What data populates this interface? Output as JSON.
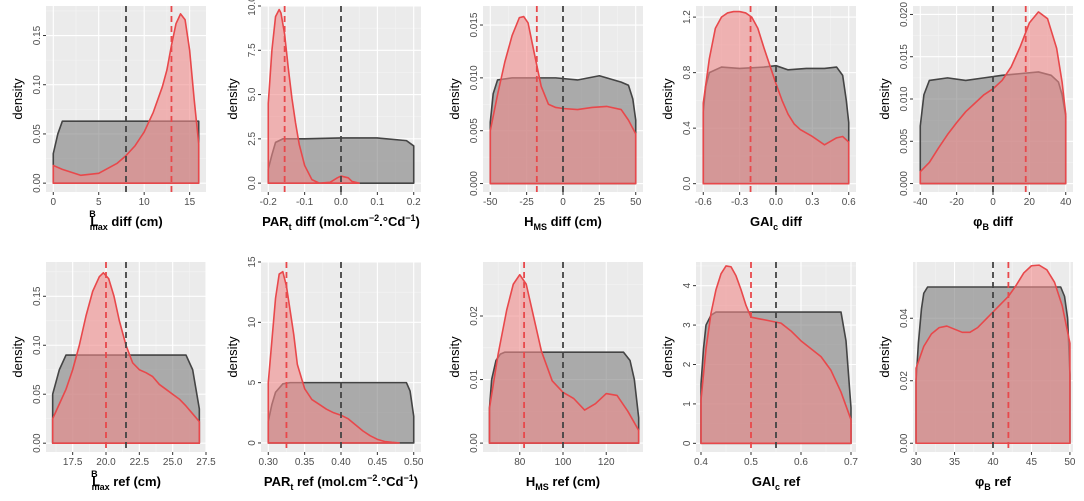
{
  "colors": {
    "panel_bg": "#ebebeb",
    "grid_major": "#ffffff",
    "grid_minor": "#f4f4f4",
    "grey_fill": "#7f7f7f",
    "grey_line": "#444444",
    "red_fill": "#f08a8a",
    "red_line": "#e8484b",
    "text": "#4d4d4d",
    "title": "#000000"
  },
  "chart_data": [
    {
      "type": "area",
      "id": "lmax-diff",
      "ylabel": "density",
      "xlabel_main": "L",
      "xlabel_sup": "B",
      "xlabel_sub": "max",
      "xlabel_rest": " diff (cm)",
      "xlim": [
        -0.8,
        16.8
      ],
      "ylim": [
        -0.009,
        0.18
      ],
      "xticks": [
        0,
        5,
        10,
        15
      ],
      "xtick_labels": [
        "0",
        "5",
        "10",
        "15"
      ],
      "yticks": [
        0,
        0.05,
        0.1,
        0.15
      ],
      "ytick_labels": [
        "0.00",
        "0.05",
        "0.10",
        "0.15"
      ],
      "grey": {
        "x": [
          0,
          0.5,
          1,
          16
        ],
        "y": [
          0.03,
          0.05,
          0.063,
          0.063
        ],
        "vline": 8
      },
      "red": {
        "x": [
          0,
          1,
          3,
          5,
          7,
          8,
          9,
          10,
          11,
          12,
          12.5,
          13,
          13.5,
          14,
          14.5,
          15,
          15.5,
          16
        ],
        "y": [
          0.018,
          0.014,
          0.008,
          0.01,
          0.02,
          0.028,
          0.038,
          0.052,
          0.072,
          0.098,
          0.115,
          0.14,
          0.162,
          0.172,
          0.166,
          0.135,
          0.085,
          0.04
        ],
        "vline": 13
      }
    },
    {
      "type": "area",
      "id": "part-diff",
      "ylabel": "density",
      "xlabel_main": "PAR",
      "xlabel_sub": "t",
      "xlabel_rest": " diff (mol.cm",
      "xlabel_sup2": "−2",
      "xlabel_rest2": ".°Cd",
      "xlabel_sup3": "−1",
      "xlabel_rest3": ")",
      "xlim": [
        -0.22,
        0.22
      ],
      "ylim": [
        -0.5,
        10
      ],
      "xticks": [
        -0.2,
        -0.1,
        0,
        0.1,
        0.2
      ],
      "xtick_labels": [
        "-0.2",
        "-0.1",
        "0.0",
        "0.1",
        "0.2"
      ],
      "yticks": [
        0,
        2.5,
        5,
        7.5,
        10
      ],
      "ytick_labels": [
        "0.0",
        "2.5",
        "5.0",
        "7.5",
        "10.0"
      ],
      "grey": {
        "x": [
          -0.2,
          -0.19,
          -0.18,
          -0.16,
          -0.1,
          0,
          0.1,
          0.18,
          0.2
        ],
        "y": [
          0.8,
          1.6,
          2.3,
          2.5,
          2.5,
          2.55,
          2.55,
          2.4,
          2.1
        ],
        "vline": 0
      },
      "red": {
        "x": [
          -0.2,
          -0.19,
          -0.18,
          -0.17,
          -0.165,
          -0.155,
          -0.145,
          -0.135,
          -0.125,
          -0.115,
          -0.1,
          -0.08,
          -0.06,
          -0.03,
          -0.01,
          0,
          0.01,
          0.02,
          0.03,
          0.05
        ],
        "y": [
          4.5,
          7.5,
          9.4,
          9.8,
          9.6,
          8.4,
          6.5,
          4.8,
          3.4,
          2.2,
          1.0,
          0.2,
          0.0,
          0.05,
          0.3,
          0.4,
          0.35,
          0.3,
          0.1,
          0.0
        ],
        "vline": -0.155
      }
    },
    {
      "type": "area",
      "id": "hms-diff",
      "ylabel": "density",
      "xlabel_main": "H",
      "xlabel_sub": "MS",
      "xlabel_rest": " diff (cm)",
      "xlim": [
        -55,
        55
      ],
      "ylim": [
        -0.0008,
        0.0168
      ],
      "xticks": [
        -50,
        -25,
        0,
        25,
        50
      ],
      "xtick_labels": [
        "-50",
        "-25",
        "0",
        "25",
        "50"
      ],
      "yticks": [
        0,
        0.005,
        0.01,
        0.015
      ],
      "ytick_labels": [
        "0.000",
        "0.005",
        "0.010",
        "0.015"
      ],
      "grey": {
        "x": [
          -50,
          -48,
          -45,
          -35,
          -20,
          -5,
          10,
          25,
          40,
          45,
          48,
          50
        ],
        "y": [
          0.0058,
          0.0085,
          0.0098,
          0.01,
          0.01,
          0.01,
          0.0098,
          0.0102,
          0.0096,
          0.0093,
          0.008,
          0.006
        ],
        "vline": 0
      },
      "red": {
        "x": [
          -50,
          -45,
          -40,
          -35,
          -30,
          -27,
          -24,
          -20,
          -15,
          -10,
          -5,
          0,
          10,
          20,
          30,
          40,
          45,
          50
        ],
        "y": [
          0.005,
          0.0084,
          0.0115,
          0.014,
          0.0157,
          0.0158,
          0.0152,
          0.0125,
          0.0092,
          0.0075,
          0.0072,
          0.0071,
          0.007,
          0.0072,
          0.0073,
          0.007,
          0.006,
          0.0047
        ],
        "vline": -18
      }
    },
    {
      "type": "area",
      "id": "gaic-diff",
      "ylabel": "density",
      "xlabel_main": "GAI",
      "xlabel_sub": "c",
      "xlabel_rest": " diff",
      "xlim": [
        -0.66,
        0.66
      ],
      "ylim": [
        -0.06,
        1.28
      ],
      "xticks": [
        -0.6,
        -0.3,
        0,
        0.3,
        0.6
      ],
      "xtick_labels": [
        "-0.6",
        "-0.3",
        "0.0",
        "0.3",
        "0.6"
      ],
      "yticks": [
        0,
        0.4,
        0.8,
        1.2
      ],
      "ytick_labels": [
        "0.0",
        "0.4",
        "0.8",
        "1.2"
      ],
      "grey": {
        "x": [
          -0.6,
          -0.58,
          -0.55,
          -0.45,
          -0.3,
          -0.1,
          0,
          0.1,
          0.25,
          0.4,
          0.5,
          0.55,
          0.58,
          0.6
        ],
        "y": [
          0.52,
          0.7,
          0.8,
          0.84,
          0.83,
          0.84,
          0.85,
          0.82,
          0.83,
          0.83,
          0.84,
          0.78,
          0.6,
          0.44
        ],
        "vline": 0
      },
      "red": {
        "x": [
          -0.6,
          -0.55,
          -0.5,
          -0.45,
          -0.4,
          -0.35,
          -0.3,
          -0.25,
          -0.2,
          -0.15,
          -0.1,
          -0.05,
          0,
          0.05,
          0.1,
          0.15,
          0.2,
          0.3,
          0.4,
          0.5,
          0.55,
          0.6
        ],
        "y": [
          0.58,
          0.9,
          1.12,
          1.2,
          1.23,
          1.24,
          1.24,
          1.23,
          1.2,
          1.12,
          0.98,
          0.85,
          0.72,
          0.6,
          0.5,
          0.43,
          0.39,
          0.34,
          0.28,
          0.33,
          0.34,
          0.3
        ],
        "vline": -0.21
      }
    },
    {
      "type": "area",
      "id": "phib-diff",
      "ylabel": "density",
      "xlabel_main": "φ",
      "xlabel_sub": "B",
      "xlabel_rest": " diff",
      "xlim": [
        -44,
        44
      ],
      "ylim": [
        -0.001,
        0.021
      ],
      "xticks": [
        -40,
        -20,
        0,
        20,
        40
      ],
      "xtick_labels": [
        "-40",
        "-20",
        "0",
        "20",
        "40"
      ],
      "yticks": [
        0,
        0.005,
        0.01,
        0.015,
        0.02
      ],
      "ytick_labels": [
        "0.000",
        "0.005",
        "0.010",
        "0.015",
        "0.020"
      ],
      "grey": {
        "x": [
          -40,
          -38,
          -35,
          -25,
          -15,
          -5,
          5,
          15,
          25,
          32,
          36,
          38,
          40
        ],
        "y": [
          0.0068,
          0.0105,
          0.0122,
          0.0125,
          0.0122,
          0.0125,
          0.0128,
          0.013,
          0.0132,
          0.0128,
          0.012,
          0.0105,
          0.008
        ],
        "vline": 0
      },
      "red": {
        "x": [
          -40,
          -35,
          -30,
          -25,
          -20,
          -15,
          -10,
          -5,
          0,
          5,
          10,
          15,
          20,
          25,
          30,
          35,
          38,
          40
        ],
        "y": [
          0.0014,
          0.0025,
          0.0042,
          0.0058,
          0.0072,
          0.0085,
          0.0095,
          0.0105,
          0.0112,
          0.0122,
          0.0138,
          0.0162,
          0.019,
          0.0203,
          0.0195,
          0.016,
          0.012,
          0.0082
        ],
        "vline": 18
      }
    },
    {
      "type": "area",
      "id": "lmax-ref",
      "ylabel": "density",
      "xlabel_main": "L",
      "xlabel_sup": "B",
      "xlabel_sub": "max",
      "xlabel_rest": " ref (cm)",
      "xlim": [
        15.5,
        27.5
      ],
      "ylim": [
        -0.009,
        0.185
      ],
      "xticks": [
        17.5,
        20,
        22.5,
        25,
        27.5
      ],
      "xtick_labels": [
        "17.5",
        "20.0",
        "22.5",
        "25.0",
        "27.5"
      ],
      "yticks": [
        0,
        0.05,
        0.1,
        0.15
      ],
      "ytick_labels": [
        "0.00",
        "0.05",
        "0.10",
        "0.15"
      ],
      "grey": {
        "x": [
          16,
          16.5,
          17,
          26,
          26.5,
          27
        ],
        "y": [
          0.05,
          0.075,
          0.09,
          0.09,
          0.075,
          0.035
        ],
        "vline": 21.5
      },
      "red": {
        "x": [
          16,
          16.5,
          17,
          17.5,
          18,
          18.5,
          19,
          19.5,
          19.8,
          20.2,
          20.6,
          21,
          21.5,
          22,
          22.5,
          23,
          23.5,
          24,
          24.5,
          25,
          25.5,
          26,
          26.5,
          27
        ],
        "y": [
          0.025,
          0.04,
          0.055,
          0.075,
          0.1,
          0.13,
          0.155,
          0.17,
          0.174,
          0.168,
          0.15,
          0.125,
          0.1,
          0.082,
          0.075,
          0.072,
          0.068,
          0.06,
          0.055,
          0.05,
          0.045,
          0.038,
          0.03,
          0.022
        ],
        "vline": 20
      }
    },
    {
      "type": "area",
      "id": "part-ref",
      "ylabel": "density",
      "xlabel_main": "PAR",
      "xlabel_sub": "t",
      "xlabel_rest": " ref (mol.cm",
      "xlabel_sup2": "−2",
      "xlabel_rest2": ".°Cd",
      "xlabel_sup3": "−1",
      "xlabel_rest3": ")",
      "xlim": [
        0.29,
        0.51
      ],
      "ylim": [
        -0.75,
        15
      ],
      "xticks": [
        0.3,
        0.35,
        0.4,
        0.45,
        0.5
      ],
      "xtick_labels": [
        "0.30",
        "0.35",
        "0.40",
        "0.45",
        "0.50"
      ],
      "yticks": [
        0,
        5,
        10,
        15
      ],
      "ytick_labels": [
        "0",
        "5",
        "10",
        "15"
      ],
      "grey": {
        "x": [
          0.3,
          0.305,
          0.31,
          0.32,
          0.33,
          0.49,
          0.495,
          0.5
        ],
        "y": [
          1.8,
          3.2,
          4.2,
          4.9,
          5.0,
          5.0,
          4.3,
          2.2
        ],
        "vline": 0.4
      },
      "red": {
        "x": [
          0.3,
          0.305,
          0.31,
          0.315,
          0.32,
          0.325,
          0.33,
          0.335,
          0.34,
          0.35,
          0.36,
          0.37,
          0.38,
          0.39,
          0.4,
          0.41,
          0.42,
          0.43,
          0.44,
          0.45,
          0.46,
          0.47,
          0.48
        ],
        "y": [
          5.0,
          8.5,
          12.0,
          14.0,
          14.2,
          13.0,
          11.0,
          9.0,
          6.5,
          4.5,
          3.6,
          3.2,
          2.8,
          2.5,
          2.3,
          2.0,
          1.5,
          1.0,
          0.6,
          0.3,
          0.12,
          0.05,
          0.0
        ],
        "vline": 0.325
      }
    },
    {
      "type": "area",
      "id": "hms-ref",
      "ylabel": "density",
      "xlabel_main": "H",
      "xlabel_sub": "MS",
      "xlabel_rest": " ref (cm)",
      "xlim": [
        63,
        137
      ],
      "ylim": [
        -0.0014,
        0.0285
      ],
      "xticks": [
        80,
        100,
        120
      ],
      "xtick_labels": [
        "80",
        "100",
        "120"
      ],
      "yticks": [
        0,
        0.01,
        0.02
      ],
      "ytick_labels": [
        "0.00",
        "0.01",
        "0.02"
      ],
      "grey": {
        "x": [
          66,
          67,
          69,
          71,
          73,
          128,
          131,
          133,
          135
        ],
        "y": [
          0.0055,
          0.01,
          0.013,
          0.014,
          0.0143,
          0.0143,
          0.013,
          0.01,
          0.004
        ],
        "vline": 100
      },
      "red": {
        "x": [
          66,
          70,
          74,
          77,
          80,
          83,
          86,
          90,
          95,
          100,
          105,
          110,
          115,
          120,
          125,
          130,
          135
        ],
        "y": [
          0.0055,
          0.014,
          0.021,
          0.025,
          0.0265,
          0.025,
          0.0205,
          0.0145,
          0.0098,
          0.008,
          0.007,
          0.0052,
          0.0062,
          0.0078,
          0.0075,
          0.005,
          0.002
        ],
        "vline": 82
      }
    },
    {
      "type": "area",
      "id": "gaic-ref",
      "ylabel": "density",
      "xlabel_main": "GAI",
      "xlabel_sub": "c",
      "xlabel_rest": " ref",
      "xlim": [
        0.39,
        0.71
      ],
      "ylim": [
        -0.22,
        4.6
      ],
      "xticks": [
        0.4,
        0.5,
        0.6,
        0.7
      ],
      "xtick_labels": [
        "0.4",
        "0.5",
        "0.6",
        "0.7"
      ],
      "yticks": [
        0,
        1,
        2,
        3,
        4
      ],
      "ytick_labels": [
        "0",
        "1",
        "2",
        "3",
        "4"
      ],
      "grey": {
        "x": [
          0.4,
          0.405,
          0.41,
          0.42,
          0.43,
          0.68,
          0.69,
          0.7
        ],
        "y": [
          1.5,
          2.4,
          3.0,
          3.25,
          3.33,
          3.33,
          2.6,
          0.9
        ],
        "vline": 0.55
      },
      "red": {
        "x": [
          0.4,
          0.41,
          0.42,
          0.43,
          0.44,
          0.45,
          0.46,
          0.47,
          0.48,
          0.49,
          0.5,
          0.52,
          0.54,
          0.56,
          0.58,
          0.6,
          0.62,
          0.64,
          0.66,
          0.68,
          0.7
        ],
        "y": [
          1.1,
          2.4,
          3.3,
          3.9,
          4.3,
          4.5,
          4.48,
          4.25,
          3.9,
          3.5,
          3.2,
          3.15,
          3.1,
          3.05,
          2.85,
          2.6,
          2.4,
          2.2,
          1.85,
          1.3,
          0.6
        ],
        "vline": 0.5
      }
    },
    {
      "type": "area",
      "id": "phib-ref",
      "ylabel": "density",
      "xlabel_main": "φ",
      "xlabel_sub": "B",
      "xlabel_rest": " ref",
      "xlim": [
        29.6,
        50.4
      ],
      "ylim": [
        -0.0028,
        0.058
      ],
      "xticks": [
        30,
        35,
        40,
        45,
        50
      ],
      "xtick_labels": [
        "30",
        "35",
        "40",
        "45",
        "50"
      ],
      "yticks": [
        0,
        0.02,
        0.04
      ],
      "ytick_labels": [
        "0.00",
        "0.02",
        "0.04"
      ],
      "grey": {
        "x": [
          30,
          30.3,
          30.7,
          31,
          31.5,
          48.8,
          49.3,
          49.7,
          50
        ],
        "y": [
          0.02,
          0.032,
          0.043,
          0.048,
          0.05,
          0.05,
          0.047,
          0.04,
          0.022
        ],
        "vline": 40
      },
      "red": {
        "x": [
          30,
          31,
          32,
          33,
          34,
          35,
          36,
          37,
          38,
          39,
          40,
          41,
          42,
          43,
          44,
          45,
          46,
          47,
          48,
          49,
          50
        ],
        "y": [
          0.024,
          0.031,
          0.035,
          0.037,
          0.0375,
          0.0365,
          0.0355,
          0.0355,
          0.037,
          0.0395,
          0.042,
          0.0445,
          0.047,
          0.0505,
          0.0545,
          0.0568,
          0.057,
          0.0555,
          0.0515,
          0.044,
          0.032
        ],
        "vline": 42
      }
    }
  ]
}
